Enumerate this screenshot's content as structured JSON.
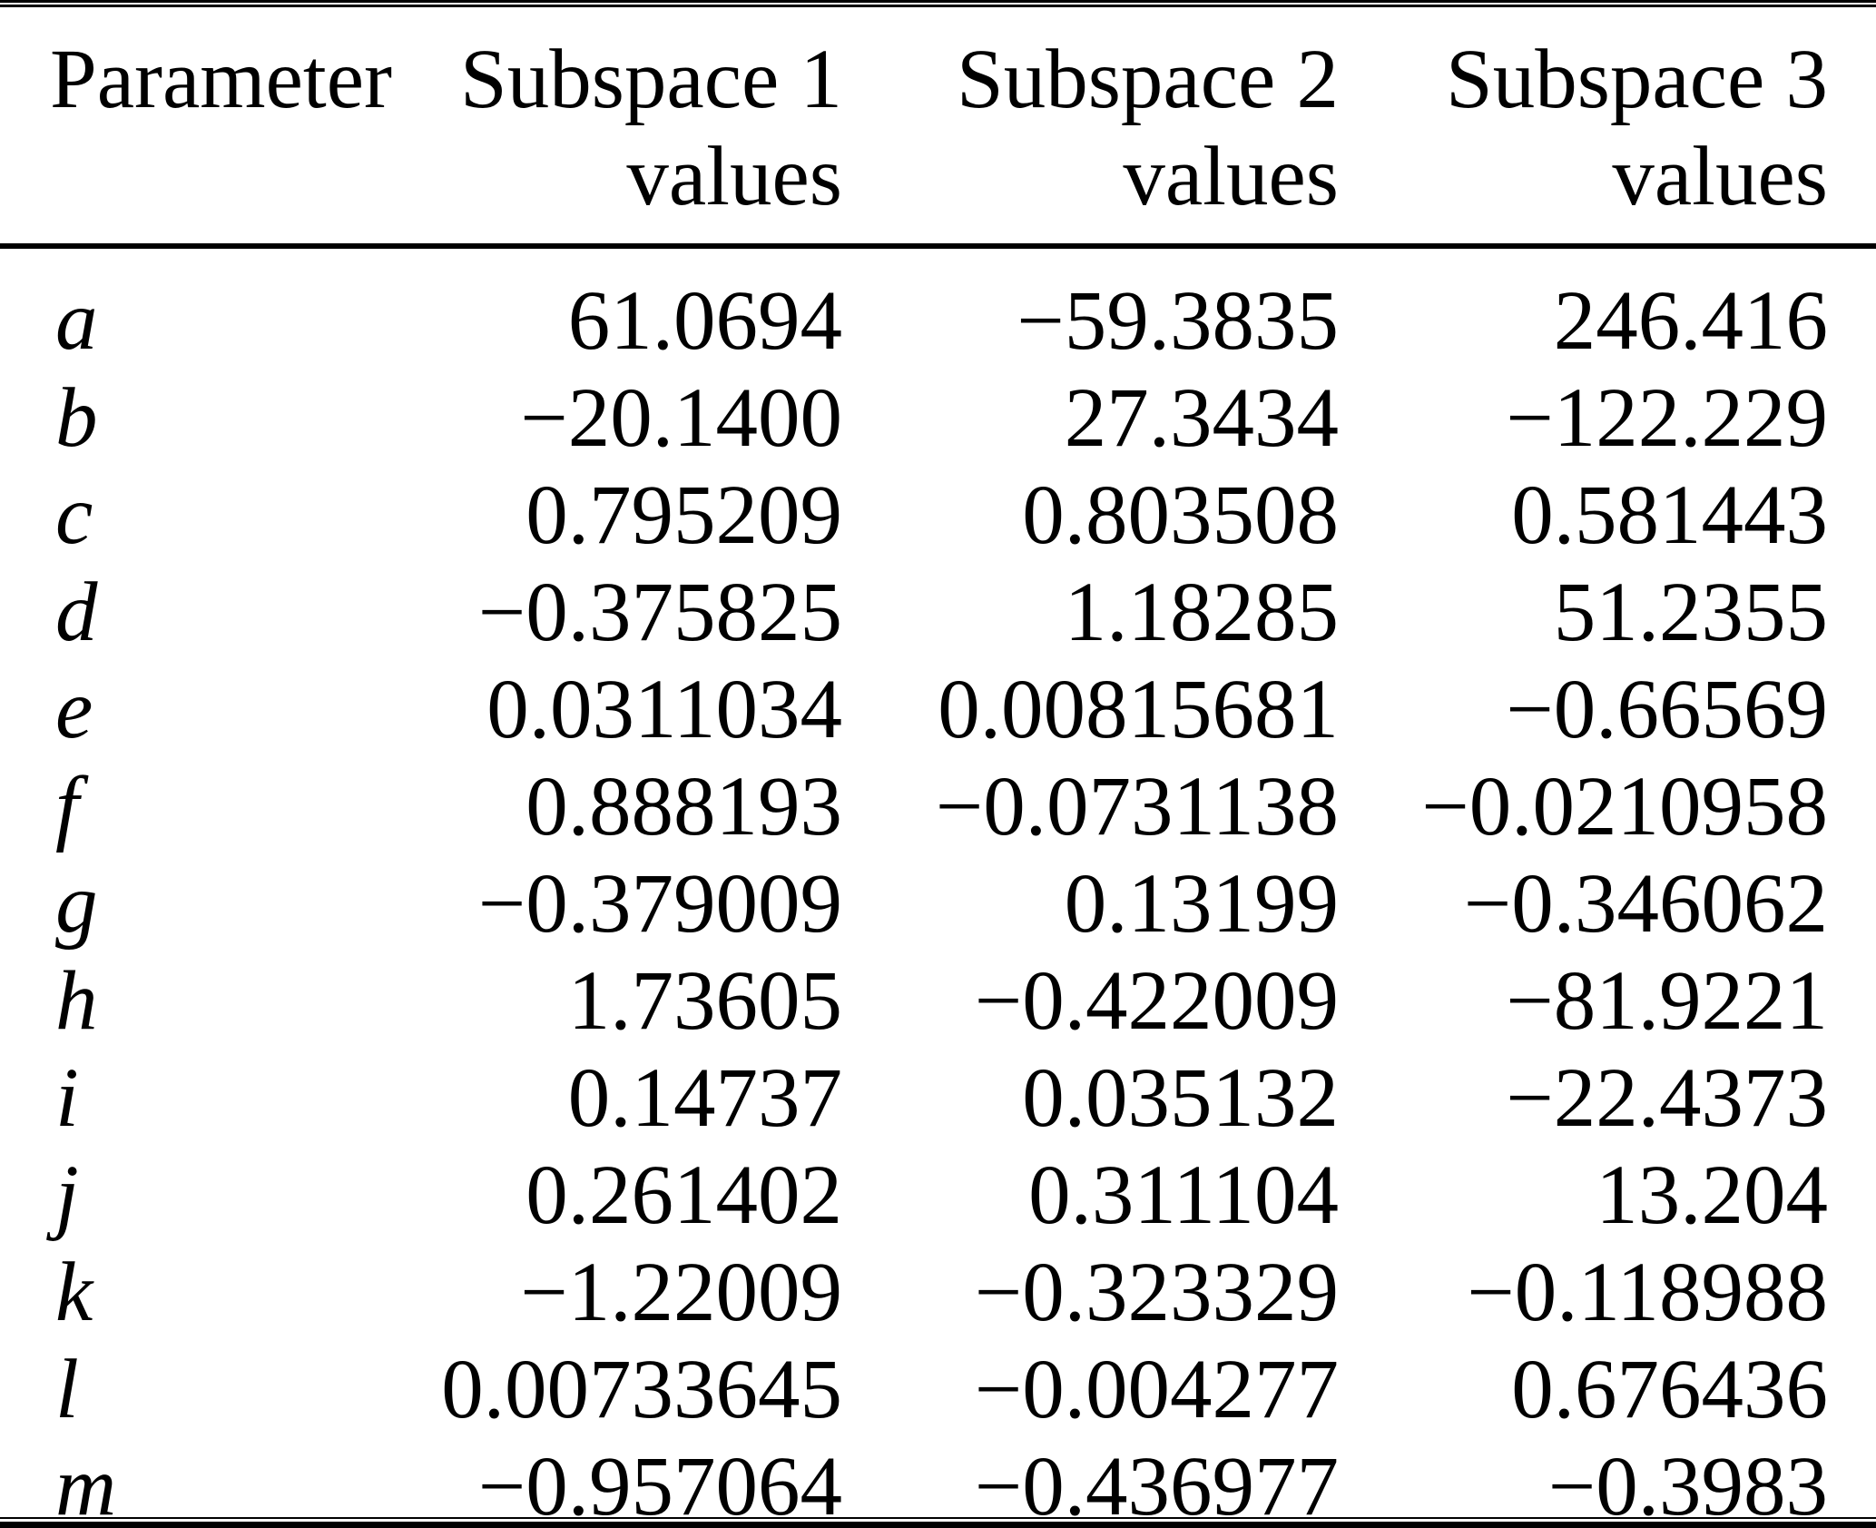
{
  "colors": {
    "background": "#ffffff",
    "text": "#000000",
    "rule": "#000000"
  },
  "table": {
    "columns": [
      {
        "line1": "Parameter",
        "line2": ""
      },
      {
        "line1": "Subspace 1",
        "line2": "values"
      },
      {
        "line1": "Subspace 2",
        "line2": "values"
      },
      {
        "line1": "Subspace 3",
        "line2": "values"
      }
    ],
    "rows": [
      {
        "param": "a",
        "values": [
          "61.0694",
          "−59.3835",
          "246.416"
        ]
      },
      {
        "param": "b",
        "values": [
          "−20.1400",
          "27.3434",
          "−122.229"
        ]
      },
      {
        "param": "c",
        "values": [
          "0.795209",
          "0.803508",
          "0.581443"
        ]
      },
      {
        "param": "d",
        "values": [
          "−0.375825",
          "1.18285",
          "51.2355"
        ]
      },
      {
        "param": "e",
        "values": [
          "0.0311034",
          "0.00815681",
          "−0.66569"
        ]
      },
      {
        "param": "f",
        "values": [
          "0.888193",
          "−0.0731138",
          "−0.0210958"
        ]
      },
      {
        "param": "g",
        "values": [
          "−0.379009",
          "0.13199",
          "−0.346062"
        ]
      },
      {
        "param": "h",
        "values": [
          "1.73605",
          "−0.422009",
          "−81.9221"
        ]
      },
      {
        "param": "i",
        "values": [
          "0.14737",
          "0.035132",
          "−22.4373"
        ]
      },
      {
        "param": "j",
        "values": [
          "0.261402",
          "0.311104",
          "13.204"
        ]
      },
      {
        "param": "k",
        "values": [
          "−1.22009",
          "−0.323329",
          "−0.118988"
        ]
      },
      {
        "param": "l",
        "values": [
          "0.00733645",
          "−0.004277",
          "0.676436"
        ]
      },
      {
        "param": "m",
        "values": [
          "−0.957064",
          "−0.436977",
          "−0.3983"
        ]
      }
    ]
  }
}
